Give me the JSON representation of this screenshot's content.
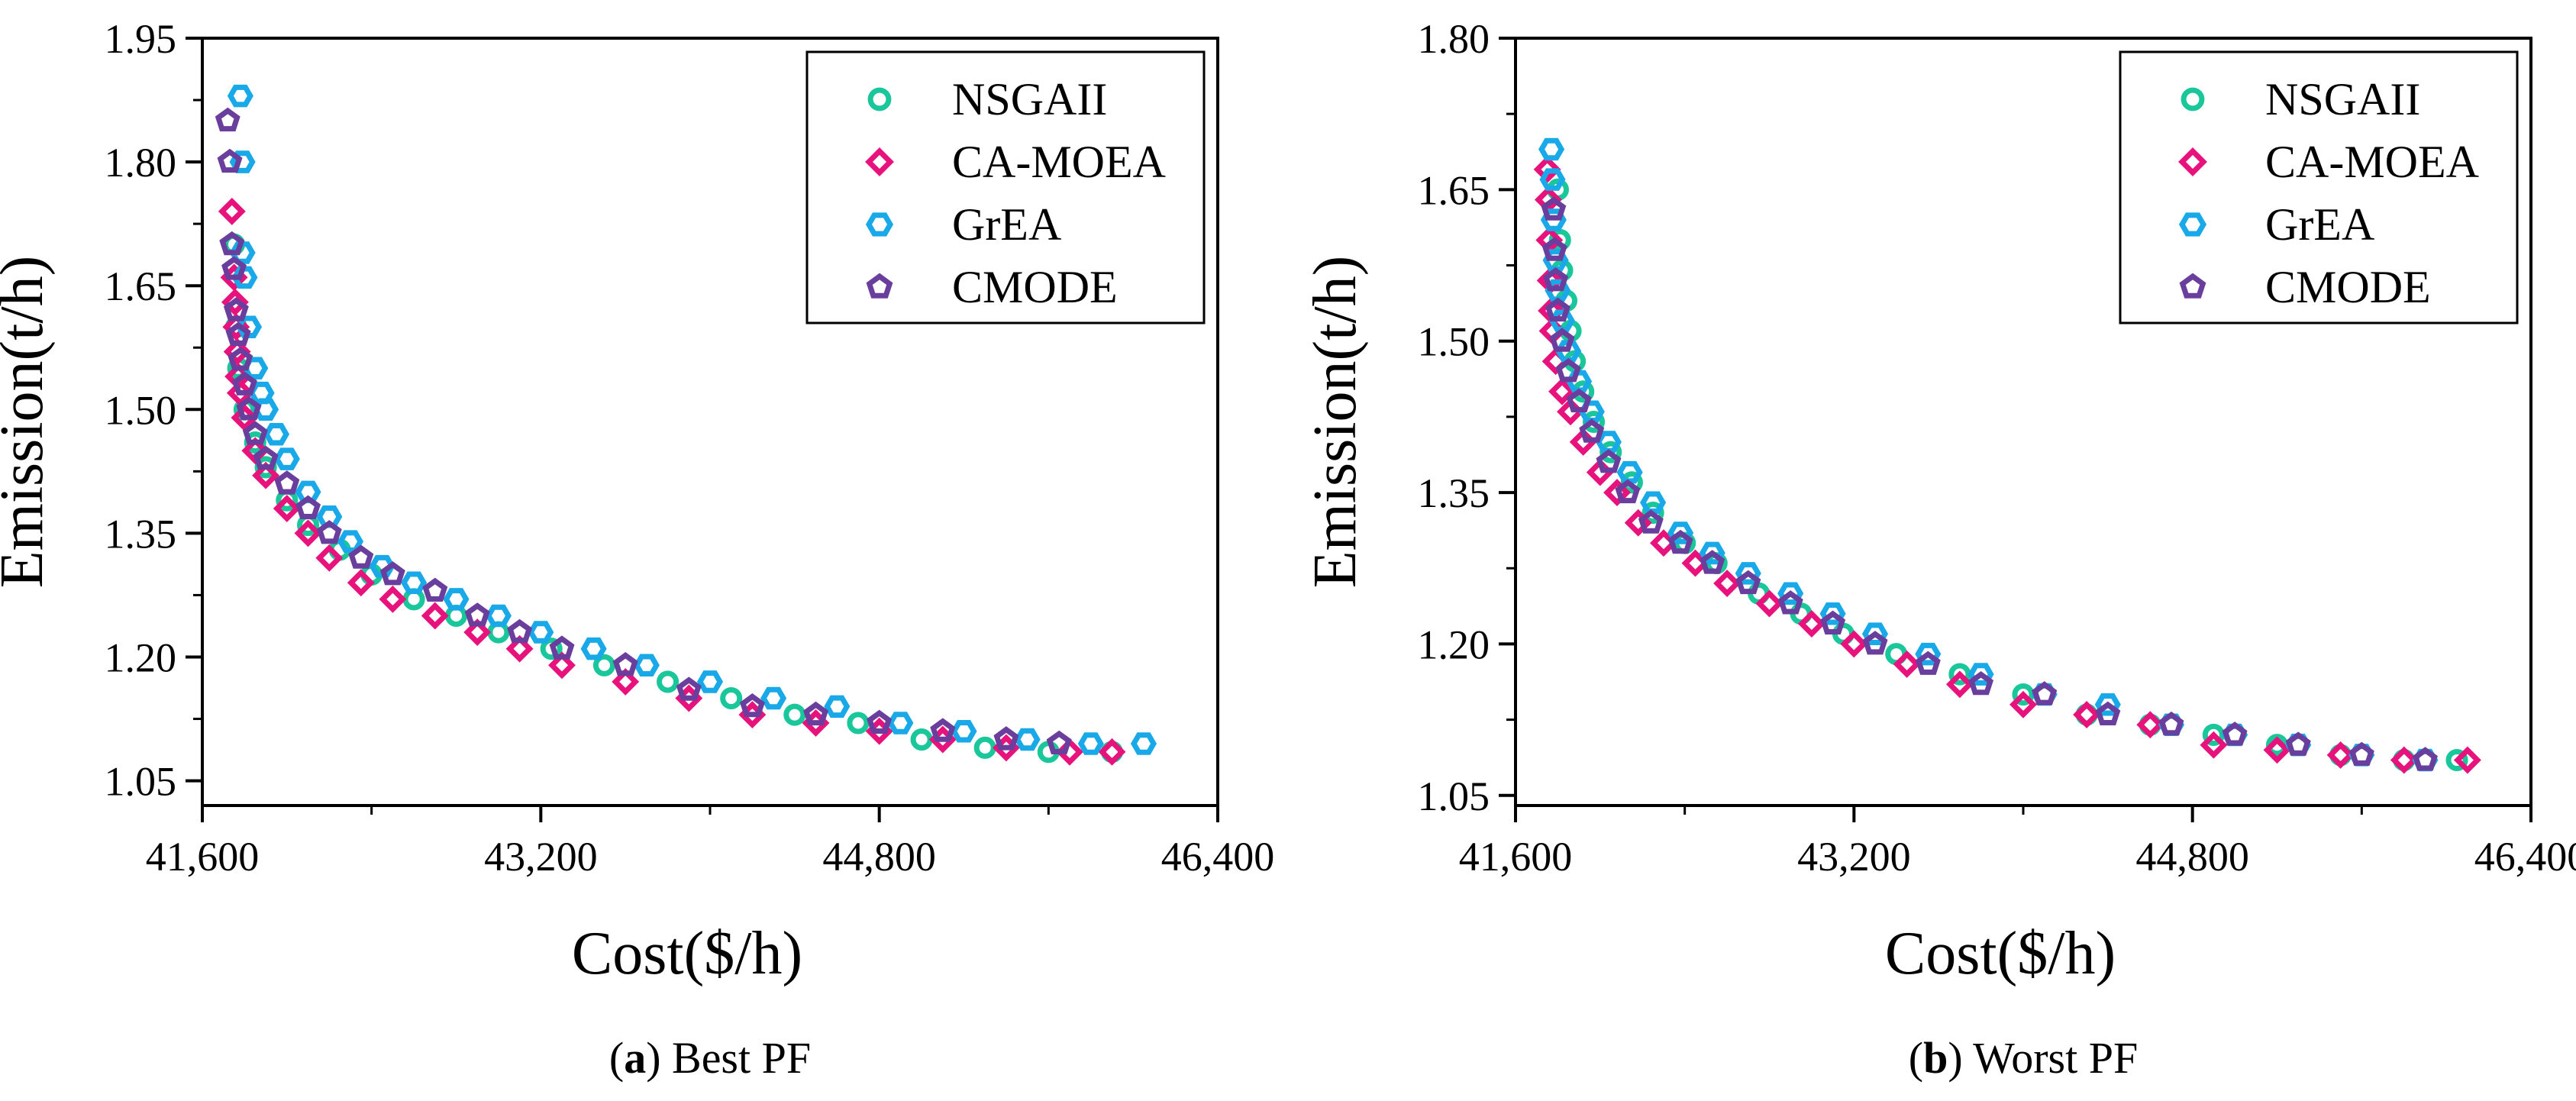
{
  "figure": {
    "captions": [
      {
        "letter": "a",
        "text": "Best PF"
      },
      {
        "letter": "b",
        "text": "Worst PF"
      }
    ]
  },
  "legend": [
    {
      "name": "NSGAII",
      "color": "#19c79a",
      "marker": "circle"
    },
    {
      "name": "CA-MOEA",
      "color": "#e8127c",
      "marker": "diamond"
    },
    {
      "name": "GrEA",
      "color": "#19a9e8",
      "marker": "hexagon"
    },
    {
      "name": "CMODE",
      "color": "#6a3e9c",
      "marker": "pentagon"
    }
  ],
  "chart_data": [
    {
      "type": "scatter",
      "xlabel": "Cost($/h)",
      "ylabel": "Emission(t/h)",
      "xlim": [
        41600,
        46400
      ],
      "ylim": [
        1.02,
        1.95
      ],
      "xticks": [
        41600,
        43200,
        44800,
        46400
      ],
      "xtick_labels": [
        "41,600",
        "43,200",
        "44,800",
        "46,400"
      ],
      "yticks": [
        1.05,
        1.2,
        1.35,
        1.5,
        1.65,
        1.8,
        1.95
      ],
      "ytick_labels": [
        "1.05",
        "1.20",
        "1.35",
        "1.50",
        "1.65",
        "1.80",
        "1.95"
      ],
      "grid": false,
      "legend_position": "top-right",
      "series": [
        {
          "name": "NSGAII",
          "points": [
            [
              41750,
              1.7
            ],
            [
              41760,
              1.6
            ],
            [
              41770,
              1.55
            ],
            [
              41800,
              1.5
            ],
            [
              41850,
              1.46
            ],
            [
              41900,
              1.43
            ],
            [
              42000,
              1.39
            ],
            [
              42100,
              1.36
            ],
            [
              42250,
              1.33
            ],
            [
              42400,
              1.3
            ],
            [
              42600,
              1.27
            ],
            [
              42800,
              1.25
            ],
            [
              43000,
              1.23
            ],
            [
              43250,
              1.21
            ],
            [
              43500,
              1.19
            ],
            [
              43800,
              1.17
            ],
            [
              44100,
              1.15
            ],
            [
              44400,
              1.13
            ],
            [
              44700,
              1.12
            ],
            [
              45000,
              1.1
            ],
            [
              45300,
              1.09
            ],
            [
              45600,
              1.085
            ],
            [
              45900,
              1.085
            ]
          ]
        },
        {
          "name": "CA-MOEA",
          "points": [
            [
              41740,
              1.74
            ],
            [
              41750,
              1.66
            ],
            [
              41755,
              1.63
            ],
            [
              41760,
              1.6
            ],
            [
              41765,
              1.57
            ],
            [
              41770,
              1.54
            ],
            [
              41780,
              1.52
            ],
            [
              41800,
              1.49
            ],
            [
              41850,
              1.45
            ],
            [
              41900,
              1.42
            ],
            [
              42000,
              1.38
            ],
            [
              42100,
              1.35
            ],
            [
              42200,
              1.32
            ],
            [
              42350,
              1.29
            ],
            [
              42500,
              1.27
            ],
            [
              42700,
              1.25
            ],
            [
              42900,
              1.23
            ],
            [
              43100,
              1.21
            ],
            [
              43300,
              1.19
            ],
            [
              43600,
              1.17
            ],
            [
              43900,
              1.15
            ],
            [
              44200,
              1.13
            ],
            [
              44500,
              1.12
            ],
            [
              44800,
              1.11
            ],
            [
              45100,
              1.1
            ],
            [
              45400,
              1.09
            ],
            [
              45700,
              1.085
            ],
            [
              45900,
              1.085
            ]
          ]
        },
        {
          "name": "GrEA",
          "points": [
            [
              41780,
              1.88
            ],
            [
              41790,
              1.8
            ],
            [
              41790,
              1.69
            ],
            [
              41800,
              1.66
            ],
            [
              41820,
              1.6
            ],
            [
              41850,
              1.55
            ],
            [
              41880,
              1.52
            ],
            [
              41900,
              1.5
            ],
            [
              41950,
              1.47
            ],
            [
              42000,
              1.44
            ],
            [
              42100,
              1.4
            ],
            [
              42200,
              1.37
            ],
            [
              42300,
              1.34
            ],
            [
              42450,
              1.31
            ],
            [
              42600,
              1.29
            ],
            [
              42800,
              1.27
            ],
            [
              43000,
              1.25
            ],
            [
              43200,
              1.23
            ],
            [
              43450,
              1.21
            ],
            [
              43700,
              1.19
            ],
            [
              44000,
              1.17
            ],
            [
              44300,
              1.15
            ],
            [
              44600,
              1.14
            ],
            [
              44900,
              1.12
            ],
            [
              45200,
              1.11
            ],
            [
              45500,
              1.1
            ],
            [
              45800,
              1.095
            ],
            [
              46050,
              1.095
            ]
          ]
        },
        {
          "name": "CMODE",
          "points": [
            [
              41720,
              1.85
            ],
            [
              41730,
              1.8
            ],
            [
              41740,
              1.7
            ],
            [
              41750,
              1.67
            ],
            [
              41760,
              1.62
            ],
            [
              41770,
              1.59
            ],
            [
              41780,
              1.56
            ],
            [
              41800,
              1.53
            ],
            [
              41820,
              1.5
            ],
            [
              41850,
              1.47
            ],
            [
              41900,
              1.44
            ],
            [
              42000,
              1.41
            ],
            [
              42100,
              1.38
            ],
            [
              42200,
              1.35
            ],
            [
              42350,
              1.32
            ],
            [
              42500,
              1.3
            ],
            [
              42700,
              1.28
            ],
            [
              42900,
              1.25
            ],
            [
              43100,
              1.23
            ],
            [
              43300,
              1.21
            ],
            [
              43600,
              1.19
            ],
            [
              43900,
              1.16
            ],
            [
              44200,
              1.14
            ],
            [
              44500,
              1.13
            ],
            [
              44800,
              1.12
            ],
            [
              45100,
              1.11
            ],
            [
              45400,
              1.1
            ],
            [
              45650,
              1.095
            ]
          ]
        }
      ]
    },
    {
      "type": "scatter",
      "xlabel": "Cost($/h)",
      "ylabel": "Emission(t/h)",
      "xlim": [
        41600,
        46400
      ],
      "ylim": [
        1.04,
        1.8
      ],
      "xticks": [
        41600,
        43200,
        44800,
        46400
      ],
      "xtick_labels": [
        "41,600",
        "43,200",
        "44,800",
        "46,400"
      ],
      "yticks": [
        1.05,
        1.2,
        1.35,
        1.5,
        1.65,
        1.8
      ],
      "ytick_labels": [
        "1.05",
        "1.20",
        "1.35",
        "1.50",
        "1.65",
        "1.80"
      ],
      "grid": false,
      "legend_position": "top-right",
      "series": [
        {
          "name": "NSGAII",
          "points": [
            [
              41800,
              1.65
            ],
            [
              41810,
              1.6
            ],
            [
              41820,
              1.57
            ],
            [
              41840,
              1.54
            ],
            [
              41860,
              1.51
            ],
            [
              41880,
              1.48
            ],
            [
              41920,
              1.45
            ],
            [
              41970,
              1.42
            ],
            [
              42050,
              1.39
            ],
            [
              42150,
              1.36
            ],
            [
              42250,
              1.33
            ],
            [
              42400,
              1.3
            ],
            [
              42550,
              1.28
            ],
            [
              42750,
              1.25
            ],
            [
              42950,
              1.23
            ],
            [
              43150,
              1.21
            ],
            [
              43400,
              1.19
            ],
            [
              43700,
              1.17
            ],
            [
              44000,
              1.15
            ],
            [
              44300,
              1.13
            ],
            [
              44600,
              1.12
            ],
            [
              44900,
              1.11
            ],
            [
              45200,
              1.1
            ],
            [
              45500,
              1.09
            ],
            [
              45800,
              1.085
            ],
            [
              46050,
              1.085
            ]
          ]
        },
        {
          "name": "CA-MOEA",
          "points": [
            [
              41750,
              1.67
            ],
            [
              41755,
              1.64
            ],
            [
              41760,
              1.6
            ],
            [
              41765,
              1.56
            ],
            [
              41770,
              1.53
            ],
            [
              41775,
              1.51
            ],
            [
              41790,
              1.48
            ],
            [
              41820,
              1.45
            ],
            [
              41860,
              1.43
            ],
            [
              41920,
              1.4
            ],
            [
              42000,
              1.37
            ],
            [
              42080,
              1.35
            ],
            [
              42180,
              1.32
            ],
            [
              42300,
              1.3
            ],
            [
              42450,
              1.28
            ],
            [
              42600,
              1.26
            ],
            [
              42800,
              1.24
            ],
            [
              43000,
              1.22
            ],
            [
              43200,
              1.2
            ],
            [
              43450,
              1.18
            ],
            [
              43700,
              1.16
            ],
            [
              44000,
              1.14
            ],
            [
              44300,
              1.13
            ],
            [
              44600,
              1.12
            ],
            [
              44900,
              1.1
            ],
            [
              45200,
              1.095
            ],
            [
              45500,
              1.09
            ],
            [
              45800,
              1.085
            ],
            [
              46100,
              1.085
            ]
          ]
        },
        {
          "name": "GrEA",
          "points": [
            [
              41770,
              1.69
            ],
            [
              41775,
              1.66
            ],
            [
              41780,
              1.62
            ],
            [
              41790,
              1.58
            ],
            [
              41800,
              1.55
            ],
            [
              41820,
              1.52
            ],
            [
              41850,
              1.49
            ],
            [
              41900,
              1.46
            ],
            [
              41960,
              1.43
            ],
            [
              42040,
              1.4
            ],
            [
              42140,
              1.37
            ],
            [
              42250,
              1.34
            ],
            [
              42380,
              1.31
            ],
            [
              42530,
              1.29
            ],
            [
              42700,
              1.27
            ],
            [
              42900,
              1.25
            ],
            [
              43100,
              1.23
            ],
            [
              43300,
              1.21
            ],
            [
              43550,
              1.19
            ],
            [
              43800,
              1.17
            ],
            [
              44100,
              1.15
            ],
            [
              44400,
              1.14
            ],
            [
              44700,
              1.12
            ],
            [
              45000,
              1.11
            ],
            [
              45300,
              1.1
            ],
            [
              45600,
              1.09
            ],
            [
              45900,
              1.085
            ]
          ]
        },
        {
          "name": "CMODE",
          "points": [
            [
              41780,
              1.63
            ],
            [
              41785,
              1.59
            ],
            [
              41790,
              1.56
            ],
            [
              41800,
              1.53
            ],
            [
              41820,
              1.5
            ],
            [
              41850,
              1.47
            ],
            [
              41900,
              1.44
            ],
            [
              41960,
              1.41
            ],
            [
              42040,
              1.38
            ],
            [
              42130,
              1.35
            ],
            [
              42240,
              1.32
            ],
            [
              42380,
              1.3
            ],
            [
              42530,
              1.28
            ],
            [
              42700,
              1.26
            ],
            [
              42900,
              1.24
            ],
            [
              43100,
              1.22
            ],
            [
              43300,
              1.2
            ],
            [
              43550,
              1.18
            ],
            [
              43800,
              1.16
            ],
            [
              44100,
              1.15
            ],
            [
              44400,
              1.13
            ],
            [
              44700,
              1.12
            ],
            [
              45000,
              1.11
            ],
            [
              45300,
              1.1
            ],
            [
              45600,
              1.09
            ],
            [
              45900,
              1.085
            ]
          ]
        }
      ]
    }
  ]
}
